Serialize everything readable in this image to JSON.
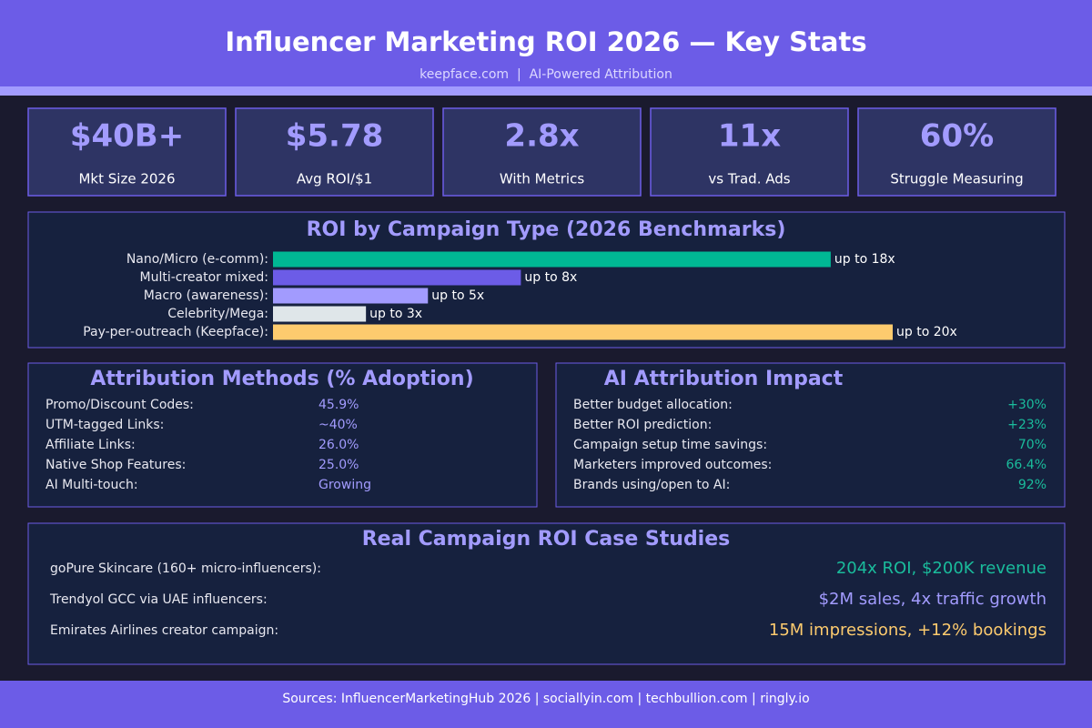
{
  "header": {
    "title": "Influencer Marketing ROI 2026 — Key Stats",
    "subtitle": "keepface.com  |  AI-Powered Attribution"
  },
  "stats": [
    {
      "value": "$40B+",
      "label": "Mkt Size 2026"
    },
    {
      "value": "$5.78",
      "label": "Avg ROI/$1"
    },
    {
      "value": "2.8x",
      "label": "With Metrics"
    },
    {
      "value": "11x",
      "label": "vs Trad. Ads"
    },
    {
      "value": "60%",
      "label": "Struggle Measuring"
    }
  ],
  "chart_data": {
    "type": "barh",
    "title": "ROI by Campaign Type (2026 Benchmarks)",
    "categories": [
      "Nano/Micro (e-comm):",
      "Multi-creator mixed:",
      "Macro (awareness):",
      "Celebrity/Mega:",
      "Pay-per-outreach (Keepface):"
    ],
    "values": [
      18,
      8,
      5,
      3,
      20
    ],
    "value_labels": [
      "up to 18x",
      "up to 8x",
      "up to 5x",
      "up to 3x",
      "up to 20x"
    ],
    "colors": [
      "#00b894",
      "#6c5ce7",
      "#a29bfe",
      "#dfe6e9",
      "#fdcb6e"
    ]
  },
  "attribution": {
    "title": "Attribution Methods (% Adoption)",
    "rows": [
      [
        "Promo/Discount Codes:",
        "45.9%"
      ],
      [
        "UTM-tagged Links:",
        "~40%"
      ],
      [
        "Affiliate Links:",
        "26.0%"
      ],
      [
        "Native Shop Features:",
        "25.0%"
      ],
      [
        "AI Multi-touch:",
        "Growing"
      ]
    ]
  },
  "ai_impact": {
    "title": "AI Attribution Impact",
    "rows": [
      [
        "Better budget allocation:",
        "+30%"
      ],
      [
        "Better ROI prediction:",
        "+23%"
      ],
      [
        "Campaign setup time savings:",
        "70%"
      ],
      [
        "Marketers improved outcomes:",
        "66.4%"
      ],
      [
        "Brands using/open to AI:",
        "92%"
      ]
    ]
  },
  "cases": {
    "title": "Real Campaign ROI Case Studies",
    "rows": [
      [
        "goPure Skincare (160+ micro-influencers):",
        "204x ROI, $200K revenue"
      ],
      [
        "Trendyol GCC via UAE influencers:",
        "$2M sales, 4x traffic growth"
      ],
      [
        "Emirates Airlines creator campaign:",
        "15M impressions, +12% bookings"
      ]
    ]
  },
  "footer": "Sources: InfluencerMarketingHub 2026 | sociallyin.com | techbullion.com | ringly.io"
}
